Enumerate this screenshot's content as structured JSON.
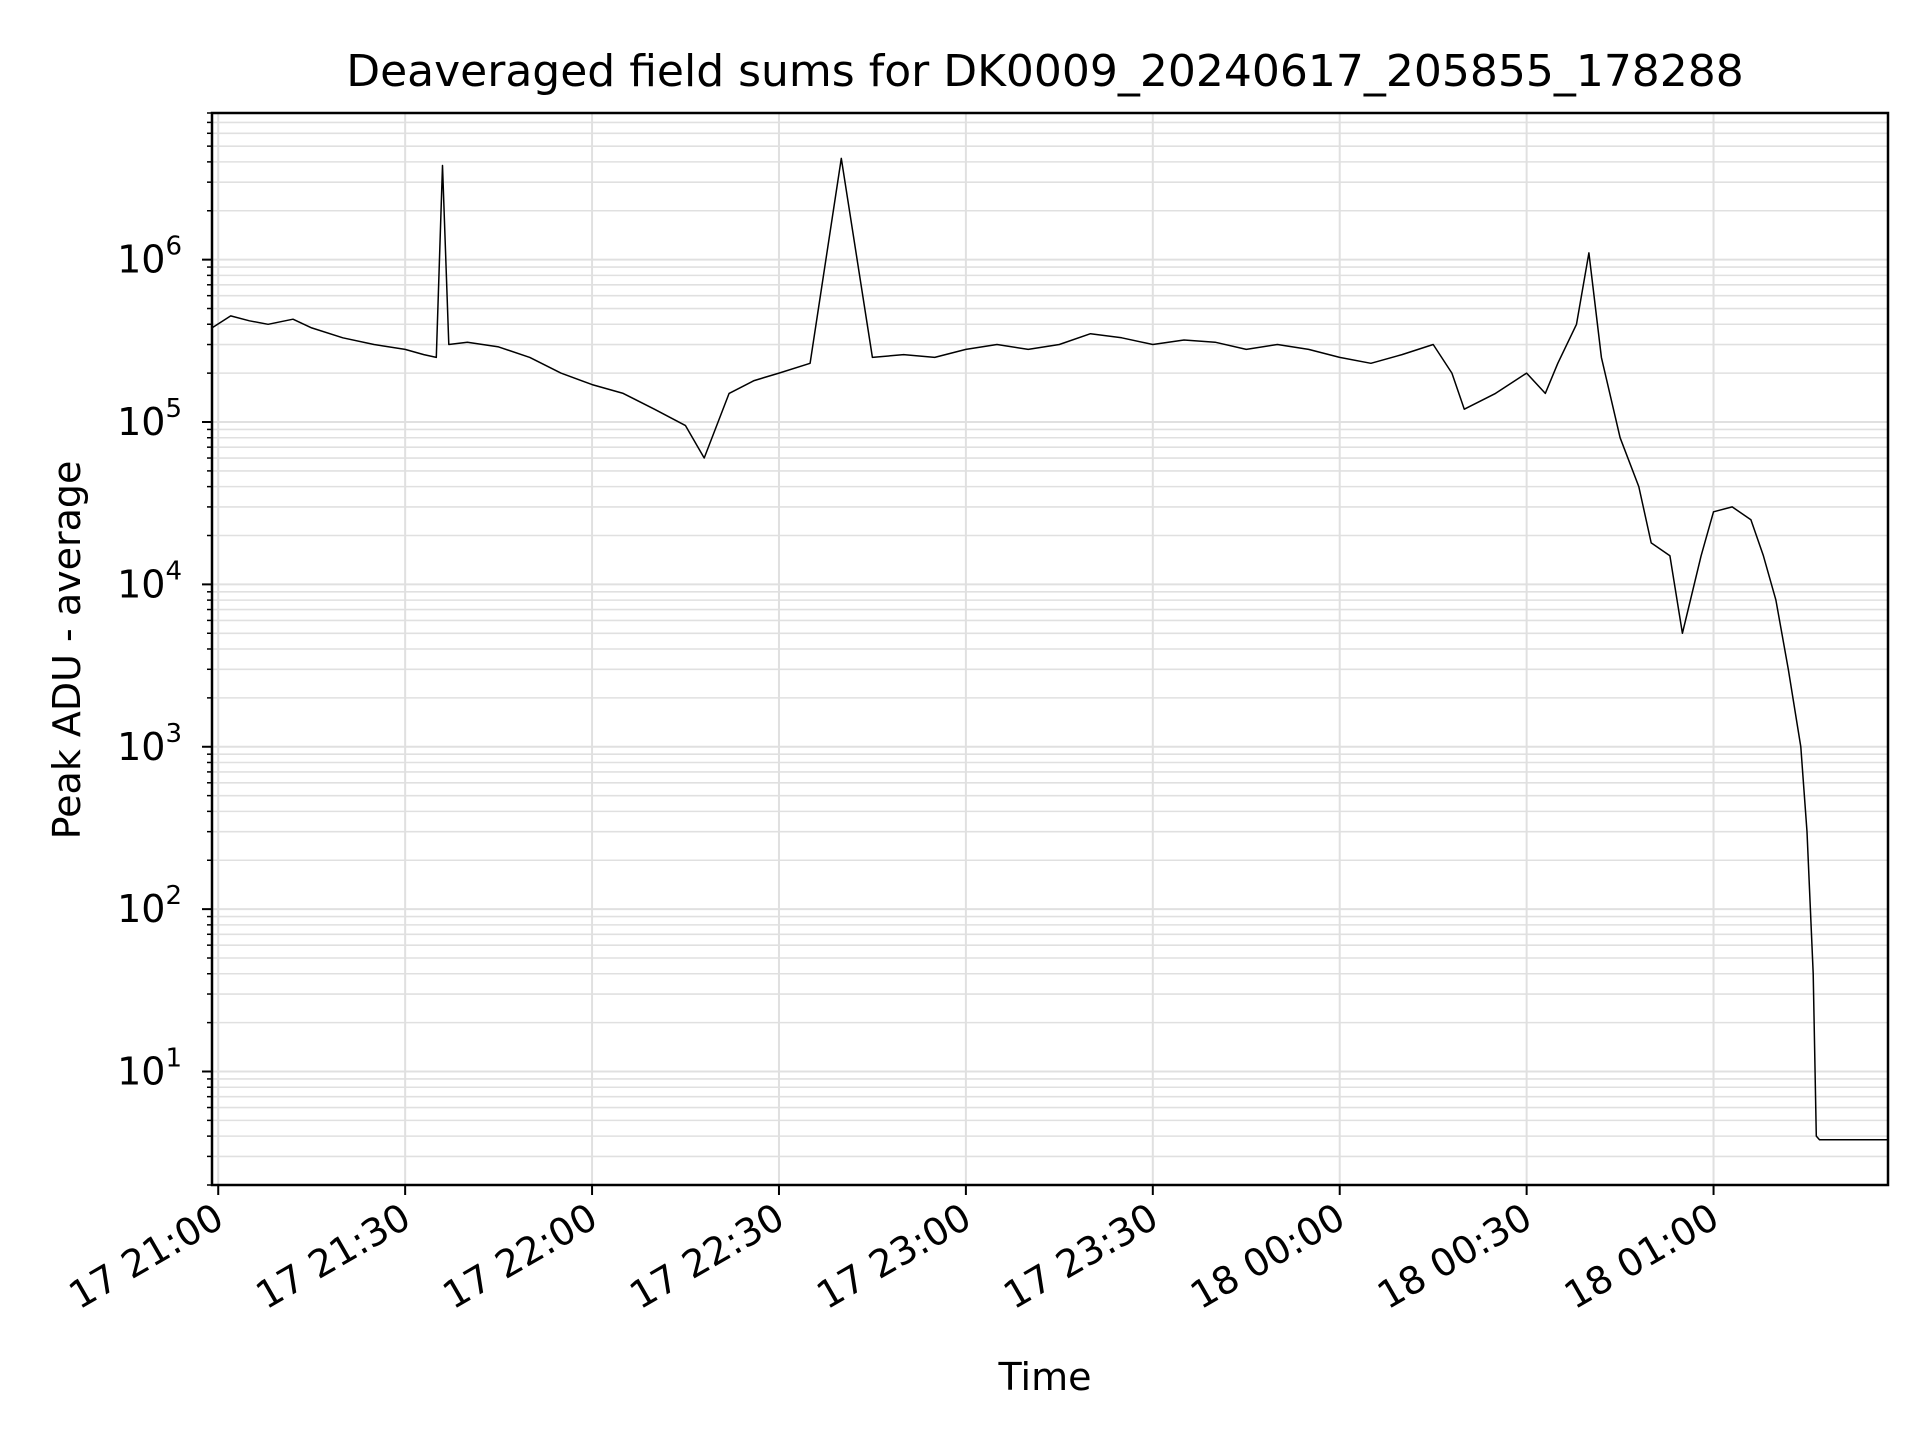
{
  "chart_data": {
    "type": "line",
    "title": "Deaveraged field sums for DK0009_20240617_205855_178288",
    "xlabel": "Time",
    "ylabel": "Peak ADU - average",
    "yscale": "log",
    "ylim": [
      2,
      8000000
    ],
    "xlim": [
      "2024-06-17 20:59:00",
      "2024-06-18 01:28:00"
    ],
    "grid": true,
    "line_color": "#000000",
    "grid_color": "#e0e0e0",
    "x_ticks": [
      {
        "t": "2024-06-17 21:00:00",
        "label": "17 21:00"
      },
      {
        "t": "2024-06-17 21:30:00",
        "label": "17 21:30"
      },
      {
        "t": "2024-06-17 22:00:00",
        "label": "17 22:00"
      },
      {
        "t": "2024-06-17 22:30:00",
        "label": "17 22:30"
      },
      {
        "t": "2024-06-17 23:00:00",
        "label": "17 23:00"
      },
      {
        "t": "2024-06-17 23:30:00",
        "label": "17 23:30"
      },
      {
        "t": "2024-06-18 00:00:00",
        "label": "18 00:00"
      },
      {
        "t": "2024-06-18 00:30:00",
        "label": "18 00:30"
      },
      {
        "t": "2024-06-18 01:00:00",
        "label": "18 01:00"
      }
    ],
    "y_ticks": [
      {
        "value": 10,
        "base": "10",
        "exp": "1"
      },
      {
        "value": 100,
        "base": "10",
        "exp": "2"
      },
      {
        "value": 1000,
        "base": "10",
        "exp": "3"
      },
      {
        "value": 10000,
        "base": "10",
        "exp": "4"
      },
      {
        "value": 100000,
        "base": "10",
        "exp": "5"
      },
      {
        "value": 1000000,
        "base": "10",
        "exp": "6"
      }
    ],
    "series": [
      {
        "x": [
          "2024-06-17 20:59:00",
          "2024-06-17 21:02:00",
          "2024-06-17 21:05:00",
          "2024-06-17 21:08:00",
          "2024-06-17 21:12:00",
          "2024-06-17 21:15:00",
          "2024-06-17 21:20:00",
          "2024-06-17 21:25:00",
          "2024-06-17 21:30:00",
          "2024-06-17 21:33:00",
          "2024-06-17 21:35:00",
          "2024-06-17 21:36:00",
          "2024-06-17 21:37:00",
          "2024-06-17 21:40:00",
          "2024-06-17 21:45:00",
          "2024-06-17 21:50:00",
          "2024-06-17 21:55:00",
          "2024-06-17 22:00:00",
          "2024-06-17 22:05:00",
          "2024-06-17 22:10:00",
          "2024-06-17 22:15:00",
          "2024-06-17 22:18:00",
          "2024-06-17 22:22:00",
          "2024-06-17 22:26:00",
          "2024-06-17 22:30:00",
          "2024-06-17 22:35:00",
          "2024-06-17 22:40:00",
          "2024-06-17 22:45:00",
          "2024-06-17 22:50:00",
          "2024-06-17 22:55:00",
          "2024-06-17 23:00:00",
          "2024-06-17 23:05:00",
          "2024-06-17 23:10:00",
          "2024-06-17 23:15:00",
          "2024-06-17 23:20:00",
          "2024-06-17 23:25:00",
          "2024-06-17 23:30:00",
          "2024-06-17 23:35:00",
          "2024-06-17 23:40:00",
          "2024-06-17 23:45:00",
          "2024-06-17 23:50:00",
          "2024-06-17 23:55:00",
          "2024-06-18 00:00:00",
          "2024-06-18 00:05:00",
          "2024-06-18 00:10:00",
          "2024-06-18 00:15:00",
          "2024-06-18 00:18:00",
          "2024-06-18 00:20:00",
          "2024-06-18 00:25:00",
          "2024-06-18 00:30:00",
          "2024-06-18 00:33:00",
          "2024-06-18 00:35:00",
          "2024-06-18 00:38:00",
          "2024-06-18 00:40:00",
          "2024-06-18 00:42:00",
          "2024-06-18 00:45:00",
          "2024-06-18 00:48:00",
          "2024-06-18 00:50:00",
          "2024-06-18 00:53:00",
          "2024-06-18 00:55:00",
          "2024-06-18 00:58:00",
          "2024-06-18 01:00:00",
          "2024-06-18 01:03:00",
          "2024-06-18 01:06:00",
          "2024-06-18 01:08:00",
          "2024-06-18 01:10:00",
          "2024-06-18 01:12:00",
          "2024-06-18 01:14:00",
          "2024-06-18 01:15:00",
          "2024-06-18 01:16:00",
          "2024-06-18 01:16:30",
          "2024-06-18 01:17:00",
          "2024-06-18 01:20:00",
          "2024-06-18 01:24:00",
          "2024-06-18 01:28:00"
        ],
        "y": [
          380000,
          450000,
          420000,
          400000,
          430000,
          380000,
          330000,
          300000,
          280000,
          260000,
          250000,
          3800000,
          300000,
          310000,
          290000,
          250000,
          200000,
          170000,
          150000,
          120000,
          95000,
          60000,
          150000,
          180000,
          200000,
          230000,
          4200000,
          250000,
          260000,
          250000,
          280000,
          300000,
          280000,
          300000,
          350000,
          330000,
          300000,
          320000,
          310000,
          280000,
          300000,
          280000,
          250000,
          230000,
          260000,
          300000,
          200000,
          120000,
          150000,
          200000,
          150000,
          230000,
          400000,
          1100000,
          250000,
          80000,
          40000,
          18000,
          15000,
          5000,
          15000,
          28000,
          30000,
          25000,
          15000,
          8000,
          3000,
          1000,
          300,
          40,
          4,
          3.8,
          3.8,
          3.8,
          3.8
        ]
      }
    ]
  }
}
